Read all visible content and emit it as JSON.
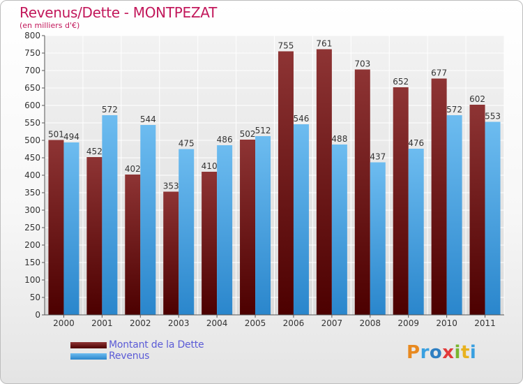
{
  "title": "Revenus/Dette - MONTPEZAT",
  "subtitle": "(en milliers d'€)",
  "legend": {
    "dette": "Montant de la Dette",
    "revenus": "Revenus"
  },
  "logo": {
    "letters": [
      "P",
      "r",
      "o",
      "x",
      "i",
      "t",
      "i"
    ]
  },
  "colors": {
    "dette_top": "#8e3434",
    "dette_bottom": "#4c0000",
    "revenus_top": "#6dbcf0",
    "revenus_bottom": "#2a86cc",
    "title": "#c2185b",
    "legend_text": "#5b5bd6"
  },
  "chart_data": {
    "type": "bar",
    "title": "Revenus/Dette - MONTPEZAT",
    "subtitle": "(en milliers d'€)",
    "categories": [
      "2000",
      "2001",
      "2002",
      "2003",
      "2004",
      "2005",
      "2006",
      "2007",
      "2008",
      "2009",
      "2010",
      "2011"
    ],
    "series": [
      {
        "name": "Montant de la Dette",
        "values": [
          501,
          452,
          402,
          353,
          410,
          502,
          755,
          761,
          703,
          652,
          677,
          602
        ]
      },
      {
        "name": "Revenus",
        "values": [
          494,
          572,
          544,
          475,
          486,
          512,
          546,
          488,
          437,
          476,
          572,
          553
        ]
      }
    ],
    "ylim": [
      0,
      800
    ],
    "yticks": [
      0,
      50,
      100,
      150,
      200,
      250,
      300,
      350,
      400,
      450,
      500,
      550,
      600,
      650,
      700,
      750,
      800
    ],
    "grid": true,
    "legend_position": "bottom-left"
  }
}
